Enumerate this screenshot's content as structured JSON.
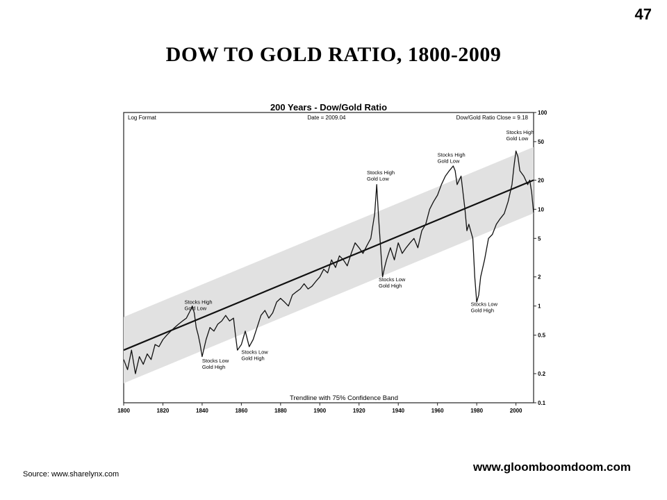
{
  "slide": {
    "number": "47",
    "title": "DOW  TO  GOLD  RATIO, 1800-2009",
    "source": "Source:  www.sharelynx.com",
    "website": "www.gloomboomdoom.com"
  },
  "chart_data": {
    "type": "line",
    "title": "200 Years - Dow/Gold Ratio",
    "format_label": "Log Format",
    "date_label": "Date = 2009.04",
    "close_label": "Dow/Gold Ratio Close = 9.18",
    "band_label": "Trendline with 75% Confidence Band",
    "y_scale": "log",
    "ylim": [
      0.1,
      100
    ],
    "xlim": [
      1800,
      2009
    ],
    "x_ticks": [
      "1800",
      "1820",
      "1840",
      "1860",
      "1880",
      "1900",
      "1920",
      "1940",
      "1960",
      "1980",
      "2000"
    ],
    "y_ticks": [
      "100",
      "50",
      "20",
      "10",
      "5",
      "2",
      "1",
      "0.5",
      "0.2",
      "0.1"
    ],
    "grid": false,
    "series": [
      {
        "x": [
          1800,
          1802,
          1804,
          1806,
          1808,
          1810,
          1812,
          1814,
          1816,
          1818,
          1820,
          1822,
          1824,
          1826,
          1828,
          1830,
          1832,
          1834,
          1835,
          1836,
          1837,
          1838,
          1839,
          1840,
          1842,
          1844,
          1846,
          1848,
          1850,
          1852,
          1854,
          1856,
          1857,
          1858,
          1860,
          1862,
          1864,
          1866,
          1868,
          1870,
          1872,
          1874,
          1876,
          1878,
          1880,
          1882,
          1884,
          1886,
          1888,
          1890,
          1892,
          1894,
          1896,
          1898,
          1900,
          1902,
          1904,
          1906,
          1908,
          1910,
          1912,
          1914,
          1916,
          1918,
          1920,
          1922,
          1924,
          1926,
          1928,
          1929,
          1930,
          1931,
          1932,
          1933,
          1934,
          1936,
          1938,
          1940,
          1942,
          1944,
          1946,
          1948,
          1950,
          1952,
          1954,
          1956,
          1958,
          1960,
          1962,
          1964,
          1966,
          1968,
          1969,
          1970,
          1972,
          1974,
          1975,
          1976,
          1978,
          1979,
          1980,
          1981,
          1982,
          1984,
          1986,
          1988,
          1990,
          1992,
          1994,
          1996,
          1998,
          1999,
          2000,
          2001,
          2002,
          2004,
          2006,
          2007,
          2008,
          2009
        ],
        "y": [
          0.28,
          0.22,
          0.35,
          0.2,
          0.3,
          0.25,
          0.32,
          0.28,
          0.4,
          0.38,
          0.45,
          0.5,
          0.55,
          0.6,
          0.65,
          0.7,
          0.75,
          0.9,
          1.0,
          0.85,
          0.6,
          0.5,
          0.4,
          0.3,
          0.45,
          0.6,
          0.55,
          0.65,
          0.7,
          0.8,
          0.7,
          0.75,
          0.5,
          0.35,
          0.4,
          0.55,
          0.38,
          0.45,
          0.6,
          0.8,
          0.9,
          0.75,
          0.85,
          1.1,
          1.2,
          1.1,
          1.0,
          1.3,
          1.4,
          1.5,
          1.7,
          1.5,
          1.6,
          1.8,
          2.0,
          2.4,
          2.2,
          3.0,
          2.5,
          3.3,
          3.0,
          2.6,
          3.5,
          4.5,
          4.0,
          3.5,
          4.2,
          5.0,
          9.0,
          18.0,
          8.0,
          4.0,
          2.0,
          2.5,
          3.0,
          4.0,
          3.0,
          4.5,
          3.5,
          4.0,
          4.5,
          5.0,
          4.0,
          6.0,
          7.0,
          10.0,
          12.0,
          14.0,
          18.0,
          22.0,
          25.0,
          28.0,
          25.0,
          18.0,
          22.0,
          10.0,
          6.0,
          7.0,
          5.0,
          2.0,
          1.1,
          1.3,
          2.0,
          3.0,
          5.0,
          5.5,
          7.0,
          8.0,
          9.0,
          12.0,
          18.0,
          28.0,
          40.0,
          35.0,
          25.0,
          22.0,
          18.0,
          20.0,
          15.0,
          9.18
        ]
      }
    ],
    "annotations": [
      {
        "text": [
          "Stocks High",
          "Gold Low"
        ],
        "year": 1831,
        "value": 1.05
      },
      {
        "text": [
          "Stocks Low",
          "Gold High"
        ],
        "year": 1840,
        "value": 0.26
      },
      {
        "text": [
          "Stocks Low",
          "Gold High"
        ],
        "year": 1860,
        "value": 0.32
      },
      {
        "text": [
          "Stocks High",
          "Gold Low"
        ],
        "year": 1924,
        "value": 23.0
      },
      {
        "text": [
          "Stocks Low",
          "Gold High"
        ],
        "year": 1930,
        "value": 1.8
      },
      {
        "text": [
          "Stocks High",
          "Gold Low"
        ],
        "year": 1960,
        "value": 35.0
      },
      {
        "text": [
          "Stocks Low",
          "Gold High"
        ],
        "year": 1977,
        "value": 1.0
      },
      {
        "text": [
          "Stocks High",
          "Gold Low"
        ],
        "year": 1995,
        "value": 60.0
      }
    ],
    "colors": {
      "line": "#111111",
      "band": "#e1e1e1",
      "trend": "#111111"
    }
  }
}
